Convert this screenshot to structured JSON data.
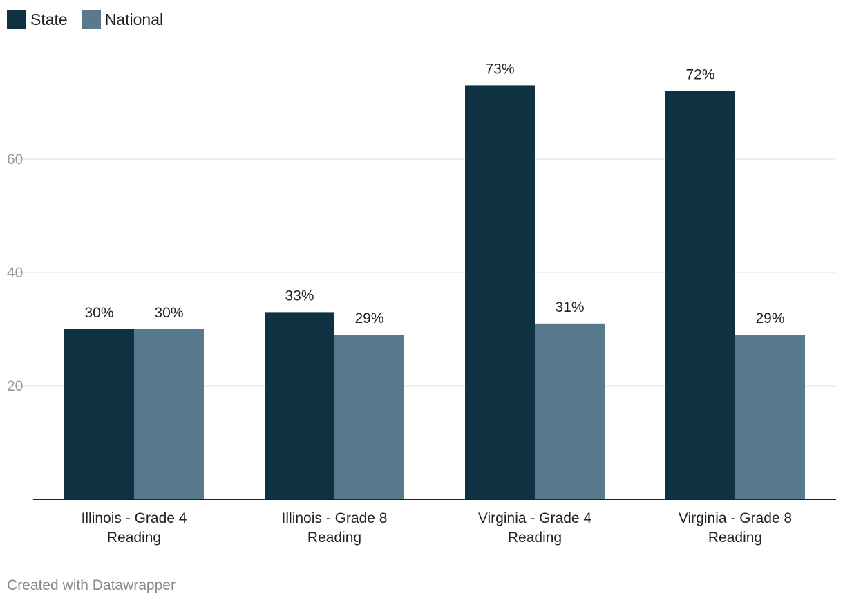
{
  "footer": {
    "credit": "Created with Datawrapper"
  },
  "chart_data": {
    "type": "bar",
    "categories": [
      [
        "Illinois - Grade 4",
        "Reading"
      ],
      [
        "Illinois - Grade 8",
        "Reading"
      ],
      [
        "Virginia - Grade 4",
        "Reading"
      ],
      [
        "Virginia - Grade 8",
        "Reading"
      ]
    ],
    "series": [
      {
        "name": "State",
        "color": "#0f3243",
        "values": [
          30,
          33,
          73,
          72
        ],
        "labels": [
          "30%",
          "33%",
          "73%",
          "72%"
        ]
      },
      {
        "name": "National",
        "color": "#587a8c",
        "values": [
          30,
          29,
          31,
          29
        ],
        "labels": [
          "30%",
          "29%",
          "31%",
          "29%"
        ]
      }
    ],
    "yticks": [
      20,
      40,
      60
    ],
    "ylim": [
      0,
      80
    ],
    "grid": true,
    "legend_position": "top-left",
    "title": "",
    "xlabel": "",
    "ylabel": ""
  }
}
